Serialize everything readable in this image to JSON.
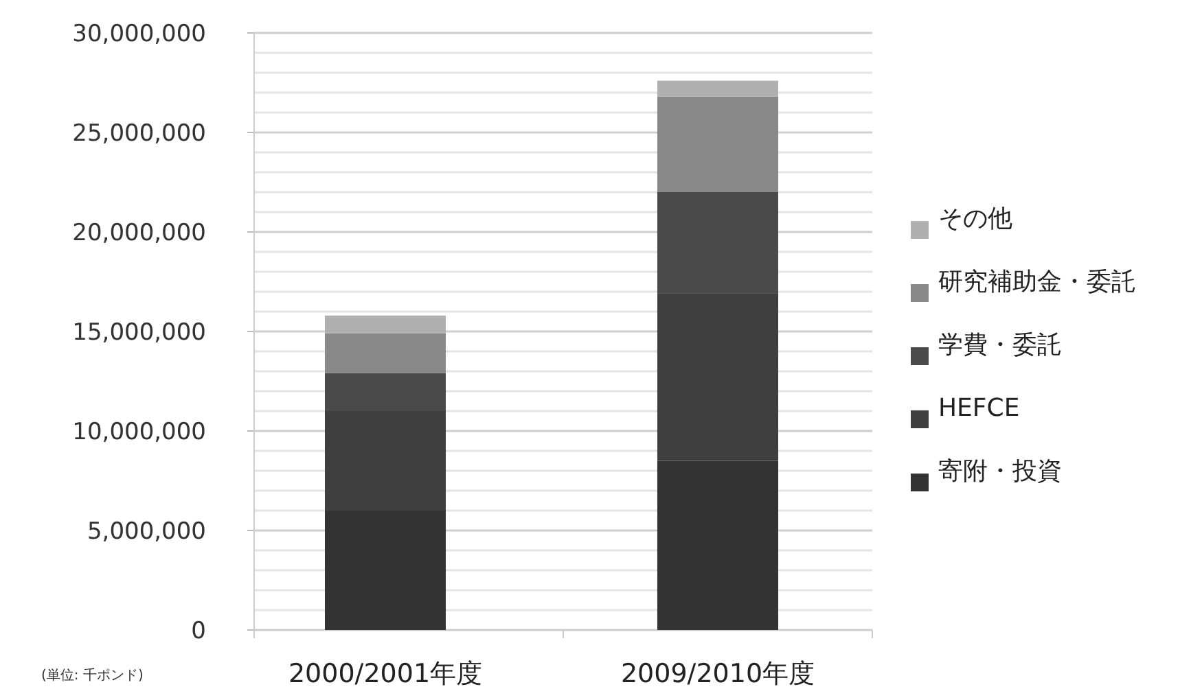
{
  "chart_data": {
    "type": "bar",
    "stacked": true,
    "categories": [
      "2000/2001年度",
      "2009/2010年度"
    ],
    "series": [
      {
        "name": "寄附・投資",
        "color": "#333333",
        "values": [
          6000000,
          8500000
        ]
      },
      {
        "name": "HEFCE",
        "color": "#3f3f3f",
        "values": [
          5000000,
          8400000
        ]
      },
      {
        "name": "学費・委託",
        "color": "#4a4a4a",
        "values": [
          1900000,
          5100000
        ]
      },
      {
        "name": "研究補助金・委託",
        "color": "#888888",
        "values": [
          2000000,
          4800000
        ]
      },
      {
        "name": "その他",
        "color": "#b0b0b0",
        "values": [
          900000,
          800000
        ]
      }
    ],
    "ylim": [
      0,
      30000000
    ],
    "yticks": [
      {
        "value": 0,
        "label": "0"
      },
      {
        "value": 1000000,
        "label": null
      },
      {
        "value": 2000000,
        "label": null
      },
      {
        "value": 3000000,
        "label": null
      },
      {
        "value": 4000000,
        "label": null
      },
      {
        "value": 5000000,
        "label": "5,000,000"
      },
      {
        "value": 6000000,
        "label": null
      },
      {
        "value": 7000000,
        "label": null
      },
      {
        "value": 8000000,
        "label": null
      },
      {
        "value": 9000000,
        "label": null
      },
      {
        "value": 10000000,
        "label": "10,000,000"
      },
      {
        "value": 11000000,
        "label": null
      },
      {
        "value": 12000000,
        "label": null
      },
      {
        "value": 13000000,
        "label": null
      },
      {
        "value": 14000000,
        "label": null
      },
      {
        "value": 15000000,
        "label": "15,000,000"
      },
      {
        "value": 16000000,
        "label": null
      },
      {
        "value": 17000000,
        "label": null
      },
      {
        "value": 18000000,
        "label": null
      },
      {
        "value": 19000000,
        "label": null
      },
      {
        "value": 20000000,
        "label": "20,000,000"
      },
      {
        "value": 21000000,
        "label": null
      },
      {
        "value": 22000000,
        "label": null
      },
      {
        "value": 23000000,
        "label": null
      },
      {
        "value": 24000000,
        "label": null
      },
      {
        "value": 25000000,
        "label": "25,000,000"
      },
      {
        "value": 26000000,
        "label": null
      },
      {
        "value": 27000000,
        "label": null
      },
      {
        "value": 28000000,
        "label": null
      },
      {
        "value": 29000000,
        "label": null
      },
      {
        "value": 30000000,
        "label": "30,000,000"
      }
    ],
    "grid": "y",
    "legend": "right",
    "annotations": [
      "(単位: 千ポンド)"
    ]
  }
}
